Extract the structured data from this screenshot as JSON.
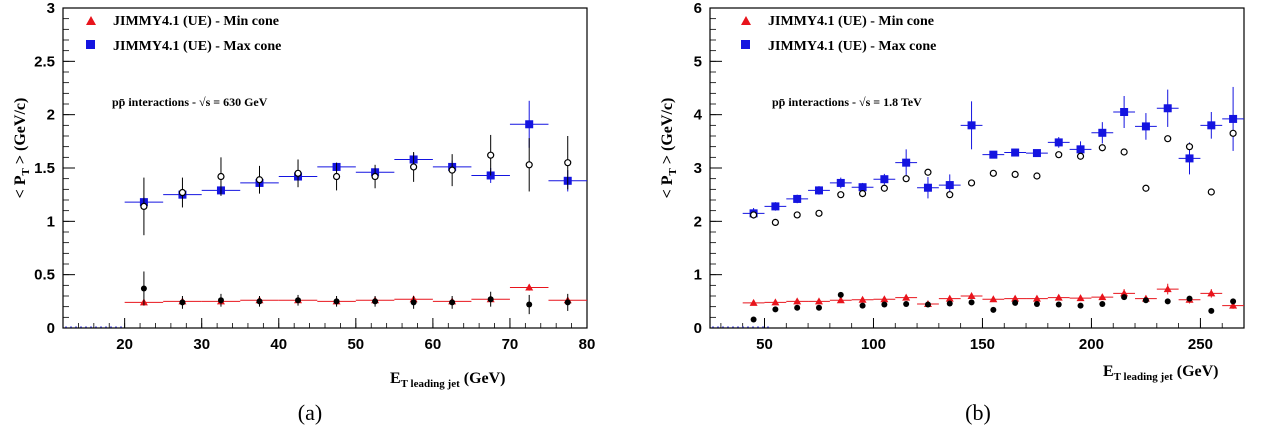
{
  "chart_data": [
    {
      "type": "scatter",
      "caption": "(a)",
      "annotation": "pp̄ interactions - √s = 630 GeV",
      "xlabel": "E",
      "xlabel_sub": "T leading jet",
      "xlabel_unit": "(GeV)",
      "ylabel": "< P",
      "ylabel_sub": "T",
      "ylabel_unit": "> (GeV/c)",
      "xlim": [
        12,
        80
      ],
      "ylim": [
        0,
        3
      ],
      "xticks": [
        20,
        30,
        40,
        50,
        60,
        70,
        80
      ],
      "yticks": [
        0,
        0.5,
        1,
        1.5,
        2,
        2.5,
        3
      ],
      "legend": [
        "JIMMY4.1 (UE) - Min cone",
        "JIMMY4.1 (UE) - Max cone"
      ],
      "series": [
        {
          "name": "JIMMY4.1 (UE) - Min cone",
          "color": "#e8141c",
          "marker": "triangle",
          "x": [
            22.5,
            27.5,
            32.5,
            37.5,
            42.5,
            47.5,
            52.5,
            57.5,
            62.5,
            67.5,
            72.5,
            77.5
          ],
          "y": [
            0.24,
            0.25,
            0.25,
            0.26,
            0.26,
            0.25,
            0.26,
            0.27,
            0.25,
            0.27,
            0.38,
            0.26
          ],
          "xerr": 2.5,
          "yerr": [
            0.02,
            0.02,
            0.02,
            0.02,
            0.02,
            0.02,
            0.02,
            0.02,
            0.02,
            0.02,
            0.03,
            0.02
          ]
        },
        {
          "name": "JIMMY4.1 (UE) - Max cone",
          "color": "#1414e0",
          "marker": "square",
          "x": [
            22.5,
            27.5,
            32.5,
            37.5,
            42.5,
            47.5,
            52.5,
            57.5,
            62.5,
            67.5,
            72.5,
            77.5
          ],
          "y": [
            1.18,
            1.25,
            1.29,
            1.36,
            1.42,
            1.51,
            1.46,
            1.58,
            1.51,
            1.43,
            1.91,
            1.38
          ],
          "xerr": 2.5,
          "yerr": [
            0.05,
            0.04,
            0.05,
            0.05,
            0.04,
            0.04,
            0.04,
            0.06,
            0.06,
            0.07,
            0.22,
            0.1
          ]
        },
        {
          "name": "",
          "color": "#000000",
          "marker": "open-circle",
          "x": [
            22.5,
            27.5,
            32.5,
            37.5,
            42.5,
            47.5,
            52.5,
            57.5,
            62.5,
            67.5,
            72.5,
            77.5
          ],
          "y": [
            1.14,
            1.27,
            1.42,
            1.39,
            1.45,
            1.42,
            1.42,
            1.51,
            1.48,
            1.62,
            1.53,
            1.55
          ],
          "yerr": [
            0.27,
            0.14,
            0.18,
            0.13,
            0.13,
            0.13,
            0.11,
            0.14,
            0.15,
            0.19,
            0.25,
            0.25
          ]
        },
        {
          "name": "",
          "color": "#000000",
          "marker": "filled-circle",
          "x": [
            22.5,
            27.5,
            32.5,
            37.5,
            42.5,
            47.5,
            52.5,
            57.5,
            62.5,
            67.5,
            72.5,
            77.5
          ],
          "y": [
            0.37,
            0.24,
            0.26,
            0.25,
            0.26,
            0.25,
            0.25,
            0.24,
            0.24,
            0.27,
            0.22,
            0.24
          ],
          "yerr": [
            0.16,
            0.06,
            0.06,
            0.05,
            0.05,
            0.05,
            0.05,
            0.06,
            0.06,
            0.07,
            0.09,
            0.08
          ]
        }
      ]
    },
    {
      "type": "scatter",
      "caption": "(b)",
      "annotation": "pp̄ interactions - √s = 1.8 TeV",
      "xlabel": "E",
      "xlabel_sub": "T leading jet",
      "xlabel_unit": "(GeV)",
      "ylabel": "< P",
      "ylabel_sub": "T",
      "ylabel_unit": "> (GeV/c)",
      "xlim": [
        25,
        270
      ],
      "ylim": [
        0,
        6
      ],
      "xticks": [
        50,
        100,
        150,
        200,
        250
      ],
      "yticks": [
        0,
        1,
        2,
        3,
        4,
        5,
        6
      ],
      "legend": [
        "JIMMY4.1 (UE) - Min cone",
        "JIMMY4.1 (UE) - Max cone"
      ],
      "series": [
        {
          "name": "JIMMY4.1 (UE) - Min cone",
          "color": "#e8141c",
          "marker": "triangle",
          "x": [
            45,
            55,
            65,
            75,
            85,
            95,
            105,
            115,
            125,
            135,
            145,
            155,
            165,
            175,
            185,
            195,
            205,
            215,
            225,
            235,
            245,
            255,
            265
          ],
          "y": [
            0.47,
            0.48,
            0.5,
            0.5,
            0.52,
            0.53,
            0.54,
            0.57,
            0.45,
            0.55,
            0.6,
            0.54,
            0.55,
            0.55,
            0.57,
            0.56,
            0.58,
            0.65,
            0.55,
            0.73,
            0.53,
            0.65,
            0.42
          ],
          "xerr": 5,
          "yerr": [
            0.03,
            0.03,
            0.03,
            0.03,
            0.03,
            0.03,
            0.03,
            0.04,
            0.03,
            0.04,
            0.05,
            0.04,
            0.04,
            0.04,
            0.05,
            0.05,
            0.05,
            0.08,
            0.06,
            0.1,
            0.07,
            0.08,
            0.06
          ]
        },
        {
          "name": "JIMMY4.1 (UE) - Max cone",
          "color": "#1414e0",
          "marker": "square",
          "x": [
            45,
            55,
            65,
            75,
            85,
            95,
            105,
            115,
            125,
            135,
            145,
            155,
            165,
            175,
            185,
            195,
            205,
            215,
            225,
            235,
            245,
            255,
            265
          ],
          "y": [
            2.15,
            2.28,
            2.42,
            2.58,
            2.72,
            2.64,
            2.79,
            3.1,
            2.63,
            2.68,
            3.8,
            3.25,
            3.29,
            3.28,
            3.48,
            3.35,
            3.66,
            4.05,
            3.78,
            4.12,
            3.18,
            3.8,
            3.92
          ],
          "xerr": 5,
          "yerr": [
            0.1,
            0.08,
            0.08,
            0.08,
            0.1,
            0.08,
            0.1,
            0.25,
            0.2,
            0.2,
            0.45,
            0.05,
            0.05,
            0.06,
            0.1,
            0.15,
            0.2,
            0.3,
            0.25,
            0.35,
            0.3,
            0.25,
            0.6
          ]
        },
        {
          "name": "",
          "color": "#000000",
          "marker": "open-circle",
          "x": [
            45,
            55,
            65,
            75,
            85,
            95,
            105,
            115,
            125,
            135,
            145,
            155,
            165,
            175,
            185,
            195,
            205,
            215,
            225,
            235,
            245,
            255,
            265
          ],
          "y": [
            2.12,
            1.98,
            2.12,
            2.15,
            2.5,
            2.52,
            2.62,
            2.8,
            2.92,
            2.5,
            2.72,
            2.9,
            2.88,
            2.85,
            3.25,
            3.22,
            3.38,
            3.3,
            2.62,
            3.55,
            3.4,
            2.55,
            3.65
          ]
        },
        {
          "name": "",
          "color": "#000000",
          "marker": "filled-circle",
          "x": [
            45,
            55,
            65,
            75,
            85,
            95,
            105,
            115,
            125,
            135,
            145,
            155,
            165,
            175,
            185,
            195,
            205,
            215,
            225,
            235,
            245,
            255,
            265
          ],
          "y": [
            0.16,
            0.35,
            0.38,
            0.38,
            0.62,
            0.42,
            0.44,
            0.45,
            0.44,
            0.46,
            0.48,
            0.34,
            0.47,
            0.45,
            0.44,
            0.42,
            0.45,
            0.58,
            0.52,
            0.5,
            0.55,
            0.32,
            0.5
          ]
        }
      ]
    }
  ]
}
